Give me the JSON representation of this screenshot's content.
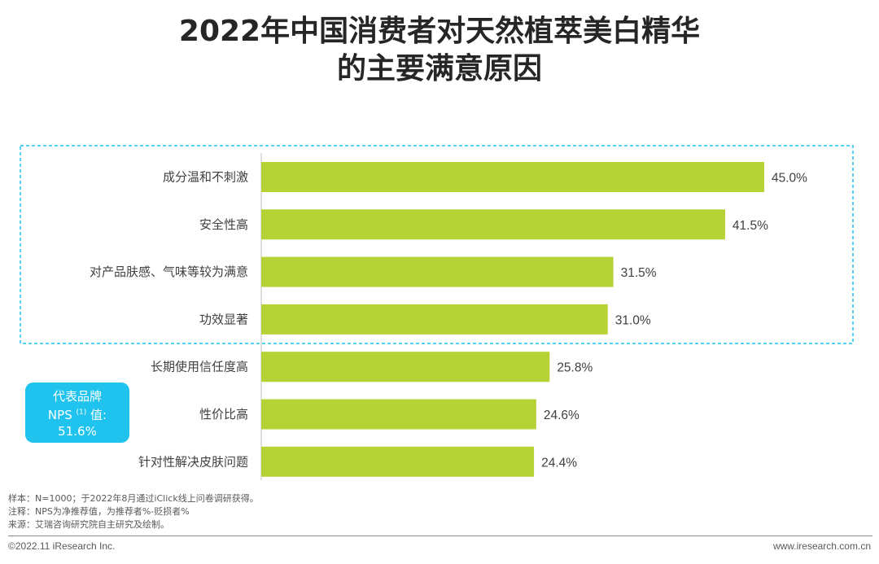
{
  "title_line1": "2022年中国消费者对天然植萃美白精华",
  "title_line2": "的主要满意原因",
  "chart_data": {
    "type": "bar",
    "orientation": "horizontal",
    "categories": [
      "成分温和不刺激",
      "安全性高",
      "对产品肤感、气味等较为满意",
      "功效显著",
      "长期使用信任度高",
      "性价比高",
      "针对性解决皮肤问题"
    ],
    "values": [
      45.0,
      41.5,
      31.5,
      31.0,
      25.8,
      24.6,
      24.4
    ],
    "value_labels": [
      "45.0%",
      "41.5%",
      "31.5%",
      "31.0%",
      "25.8%",
      "24.6%",
      "24.4%"
    ],
    "unit": "%",
    "bar_color": "#b5d334",
    "highlight_box_color": "#1fc3ed",
    "highlighted_count": 4,
    "grid": false
  },
  "badge": {
    "line1": "代表品牌",
    "line2_prefix": "NPS ",
    "line2_sup": "(1)",
    "line2_suffix": " 值:",
    "line3": "51.6%"
  },
  "notes": {
    "sample": "样本：N=1000；于2022年8月通过iClick线上问卷调研获得。",
    "note": "注释：NPS为净推荐值，为推荐者%-贬损者%",
    "source": "来源：艾瑞咨询研究院自主研究及绘制。"
  },
  "footer": {
    "copyright": "©2022.11 iResearch Inc.",
    "website": "www.iresearch.com.cn"
  }
}
